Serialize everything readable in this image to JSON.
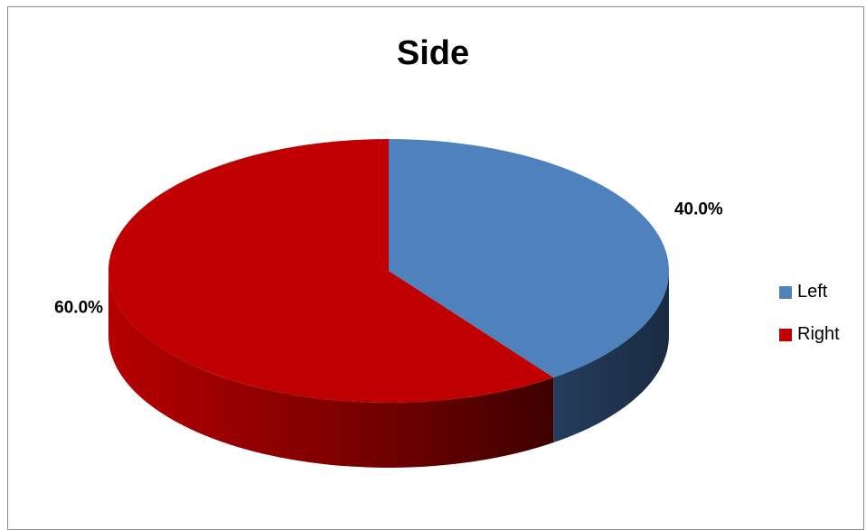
{
  "chart_data": {
    "type": "pie",
    "title": "Side",
    "categories": [
      "Left",
      "Right"
    ],
    "values": [
      40.0,
      60.0
    ],
    "data_labels": [
      "40.0%",
      "60.0%"
    ],
    "colors": [
      "#4f81bd",
      "#c00000"
    ],
    "legend_position": "right",
    "style": "3d"
  }
}
